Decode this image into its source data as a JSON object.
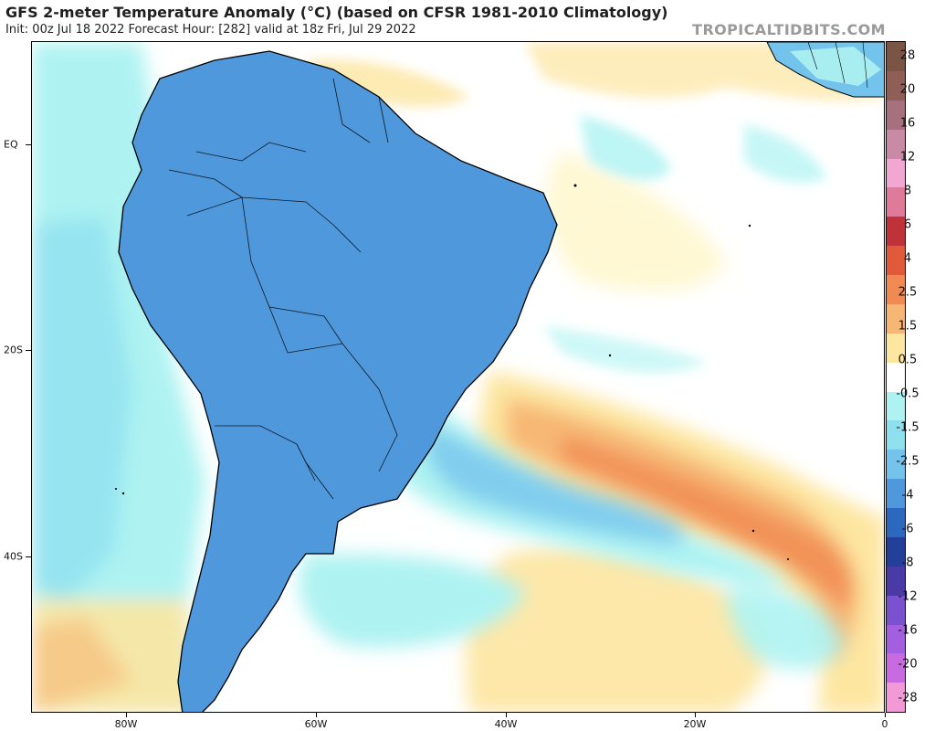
{
  "header": {
    "title": "GFS 2-meter Temperature Anomaly (°C) (based on CFSR 1981-2010 Climatology)",
    "subtitle": "Init: 00z Jul 18 2022   Forecast Hour: [282]   valid at 18z Fri, Jul 29 2022",
    "credit": "TROPICALTIDBITS.COM"
  },
  "axes": {
    "lat_labels": [
      "EQ",
      "20S",
      "40S"
    ],
    "lon_labels": [
      "80W",
      "60W",
      "40W",
      "20W",
      "0"
    ]
  },
  "colorbar": {
    "labels": [
      "28",
      "20",
      "16",
      "12",
      "8",
      "6",
      "4",
      "2.5",
      "1.5",
      "0.5",
      "-0.5",
      "-1.5",
      "-2.5",
      "-4",
      "-6",
      "-8",
      "-12",
      "-16",
      "-20",
      "-28"
    ],
    "colors": [
      "#7a5444",
      "#8e5e57",
      "#a6707e",
      "#c98aa6",
      "#f2a7d2",
      "#e07a9a",
      "#c0323a",
      "#e05a3a",
      "#f08a52",
      "#f7b774",
      "#fde6a0",
      "#ffffff",
      "#aef3f2",
      "#8fe0ef",
      "#74c3ec",
      "#4f98dc",
      "#2d68bf",
      "#22409a",
      "#4a3aa8",
      "#7a52cf",
      "#a45fe0",
      "#c86be0",
      "#f29ad8"
    ]
  },
  "map": {
    "colors": {
      "ocean_base": "#ffffff",
      "warm_light": "#fde6a0",
      "warm_mid": "#f7b774",
      "warm": "#f08a52",
      "hot": "#c0323a",
      "cool_light": "#aef3f2",
      "cool": "#74c3ec",
      "cold": "#2d68bf",
      "very_cold": "#22409a",
      "purple": "#7a52cf",
      "purple_light": "#a45fe0",
      "border": "#000000"
    }
  }
}
